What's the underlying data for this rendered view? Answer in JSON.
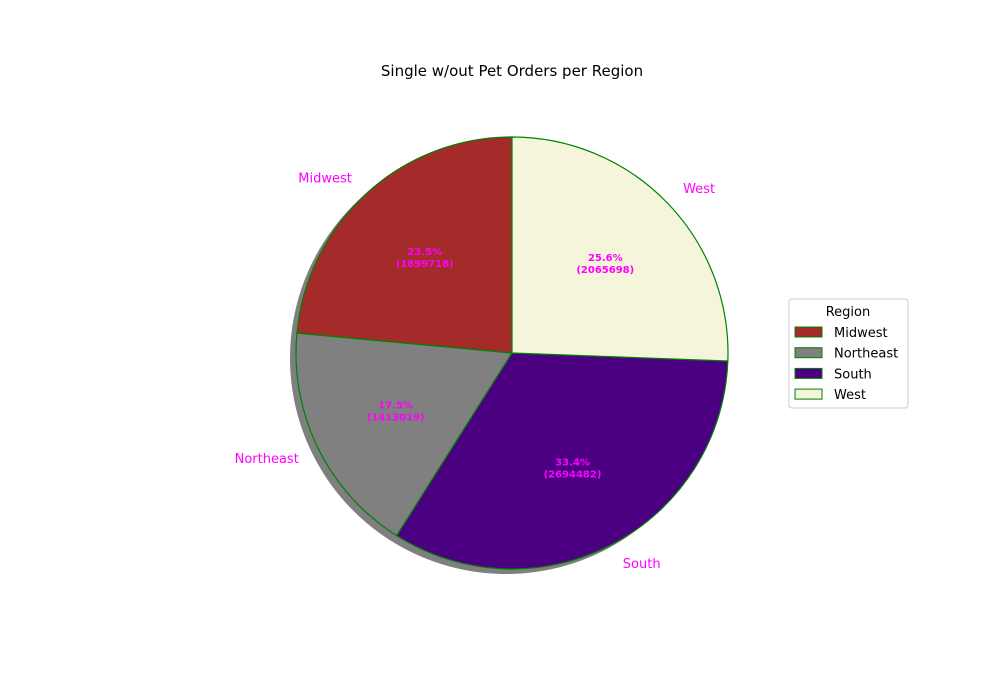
{
  "chart_data": {
    "type": "pie",
    "title": "Single w/out Pet Orders per Region",
    "categories": [
      "Midwest",
      "Northeast",
      "South",
      "West"
    ],
    "values": [
      1899718,
      1413019,
      2694482,
      2065698
    ],
    "percent_labels": [
      "23.5%\n(1899718)",
      "17.5%\n(1413019)",
      "33.4%\n(2694482)",
      "25.6%\n(2065698)"
    ],
    "colors": [
      "#a52a2a",
      "#808080",
      "#4b0082",
      "#f5f5dc"
    ],
    "edge_color": "#008000",
    "label_color": "#ff00ff",
    "shadow": true,
    "start_angle_deg": 90,
    "direction": "counterclockwise",
    "legend": {
      "title": "Region",
      "entries": [
        "Midwest",
        "Northeast",
        "South",
        "West"
      ],
      "placement": "center-right"
    }
  }
}
